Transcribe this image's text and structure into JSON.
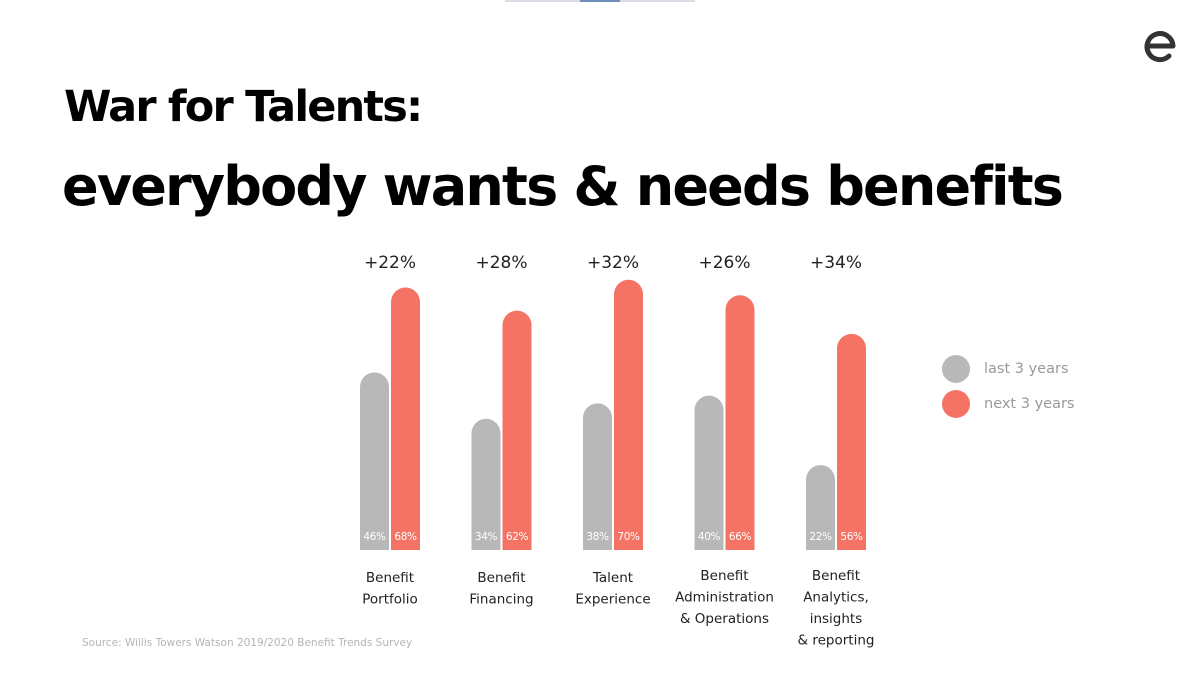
{
  "title": {
    "line1": "War for Talents:",
    "line2": "everybody wants & needs benefits"
  },
  "logo": {
    "icon": "e-logo-icon",
    "color": "#333333"
  },
  "source": "Source: Willis Towers Watson 2019/2020 Benefit Trends Survey",
  "colors": {
    "last": "#b8b8b8",
    "next": "#f47364"
  },
  "chart_data": {
    "type": "bar",
    "categories": [
      [
        "Benefit",
        "Portfolio"
      ],
      [
        "Benefit",
        "Financing"
      ],
      [
        "Talent",
        "Experience"
      ],
      [
        "Benefit",
        "Administration",
        "& Operations"
      ],
      [
        "Benefit",
        "Analytics,",
        "insights",
        "& reporting"
      ]
    ],
    "series": [
      {
        "name": "last 3 years",
        "values": [
          46,
          34,
          38,
          40,
          22
        ],
        "labels": [
          "46%",
          "34%",
          "38%",
          "40%",
          "22%"
        ]
      },
      {
        "name": "next 3 years",
        "values": [
          68,
          62,
          70,
          66,
          56
        ],
        "labels": [
          "68%",
          "62%",
          "70%",
          "66%",
          "56%"
        ]
      }
    ],
    "deltas": [
      "+22%",
      "+28%",
      "+32%",
      "+26%",
      "+34%"
    ],
    "ylim": [
      0,
      100
    ],
    "grid": false,
    "legend": "right"
  }
}
